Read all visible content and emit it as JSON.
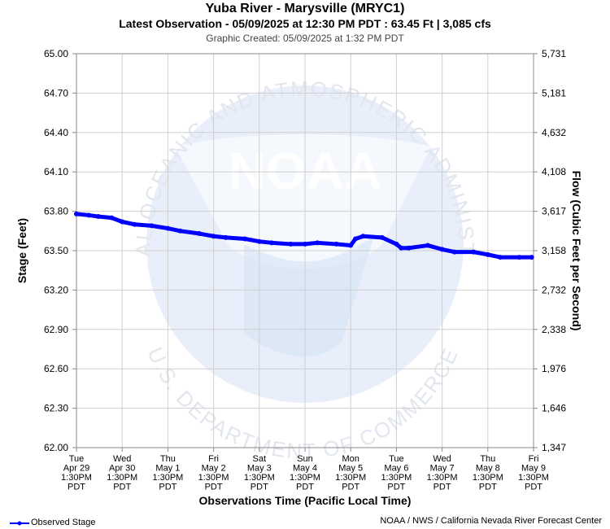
{
  "header": {
    "title": "Yuba River - Marysville (MRYC1)",
    "subtitle": "Latest Observation - 05/09/2025 at 12:30 PM PDT : 63.45 Ft | 3,085 cfs",
    "created": "Graphic Created: 05/09/2025 at 1:32 PM PDT"
  },
  "watermark": {
    "logo_text": "NOAA",
    "ring_text_top": "NATIONAL OCEANIC AND ATMOSPHERIC ADMINISTRATION",
    "ring_text_bottom": "U.S. DEPARTMENT OF COMMERCE"
  },
  "legend": {
    "label": "Observed Stage",
    "color": "#0000ff"
  },
  "footer": {
    "credit": "NOAA / NWS / California Nevada River Forecast Center"
  },
  "chart_data": {
    "type": "line",
    "title": "Yuba River - Marysville (MRYC1)",
    "xlabel": "Observations Time (Pacific Local Time)",
    "ylabel": "Stage (Feet)",
    "y2label": "Flow (Cubic Feet per Second)",
    "ylim": [
      62.0,
      65.0
    ],
    "yticks": [
      "65.00",
      "64.70",
      "64.40",
      "64.10",
      "63.80",
      "63.50",
      "63.20",
      "62.90",
      "62.60",
      "62.30",
      "62.00"
    ],
    "y2ticks": [
      "5,731",
      "5,181",
      "4,632",
      "4,108",
      "3,617",
      "3,158",
      "2,732",
      "2,338",
      "1,976",
      "1,646",
      "1,347"
    ],
    "xticks": [
      [
        "Tue",
        "Apr 29",
        "1:30PM",
        "PDT"
      ],
      [
        "Wed",
        "Apr 30",
        "1:30PM",
        "PDT"
      ],
      [
        "Thu",
        "May 1",
        "1:30PM",
        "PDT"
      ],
      [
        "Fri",
        "May 2",
        "1:30PM",
        "PDT"
      ],
      [
        "Sat",
        "May 3",
        "1:30PM",
        "PDT"
      ],
      [
        "Sun",
        "May 4",
        "1:30PM",
        "PDT"
      ],
      [
        "Mon",
        "May 5",
        "1:30PM",
        "PDT"
      ],
      [
        "Tue",
        "May 6",
        "1:30PM",
        "PDT"
      ],
      [
        "Wed",
        "May 7",
        "1:30PM",
        "PDT"
      ],
      [
        "Thu",
        "May 8",
        "1:30PM",
        "PDT"
      ],
      [
        "Fri",
        "May 9",
        "1:30PM",
        "PDT"
      ]
    ],
    "grid": true,
    "series": [
      {
        "name": "Observed Stage",
        "color": "#0000ff",
        "points": [
          [
            "2025-04-29 13:30",
            63.78
          ],
          [
            "2025-04-29 20:00",
            63.77
          ],
          [
            "2025-04-30 01:00",
            63.76
          ],
          [
            "2025-04-30 08:00",
            63.75
          ],
          [
            "2025-04-30 13:30",
            63.72
          ],
          [
            "2025-04-30 20:00",
            63.7
          ],
          [
            "2025-05-01 05:00",
            63.69
          ],
          [
            "2025-05-01 13:30",
            63.67
          ],
          [
            "2025-05-01 20:00",
            63.65
          ],
          [
            "2025-05-02 06:00",
            63.63
          ],
          [
            "2025-05-02 13:30",
            63.61
          ],
          [
            "2025-05-02 20:00",
            63.6
          ],
          [
            "2025-05-03 06:00",
            63.59
          ],
          [
            "2025-05-03 13:30",
            63.57
          ],
          [
            "2025-05-03 20:00",
            63.56
          ],
          [
            "2025-05-04 06:00",
            63.55
          ],
          [
            "2025-05-04 13:30",
            63.55
          ],
          [
            "2025-05-04 20:00",
            63.56
          ],
          [
            "2025-05-05 06:00",
            63.55
          ],
          [
            "2025-05-05 13:30",
            63.54
          ],
          [
            "2025-05-05 16:00",
            63.59
          ],
          [
            "2025-05-05 20:00",
            63.61
          ],
          [
            "2025-05-06 06:00",
            63.6
          ],
          [
            "2025-05-06 13:30",
            63.55
          ],
          [
            "2025-05-06 16:00",
            63.52
          ],
          [
            "2025-05-06 20:00",
            63.52
          ],
          [
            "2025-05-07 06:00",
            63.54
          ],
          [
            "2025-05-07 13:30",
            63.51
          ],
          [
            "2025-05-07 20:00",
            63.49
          ],
          [
            "2025-05-08 06:00",
            63.49
          ],
          [
            "2025-05-08 13:30",
            63.47
          ],
          [
            "2025-05-08 20:00",
            63.45
          ],
          [
            "2025-05-09 06:00",
            63.45
          ],
          [
            "2025-05-09 12:30",
            63.45
          ]
        ]
      }
    ]
  }
}
